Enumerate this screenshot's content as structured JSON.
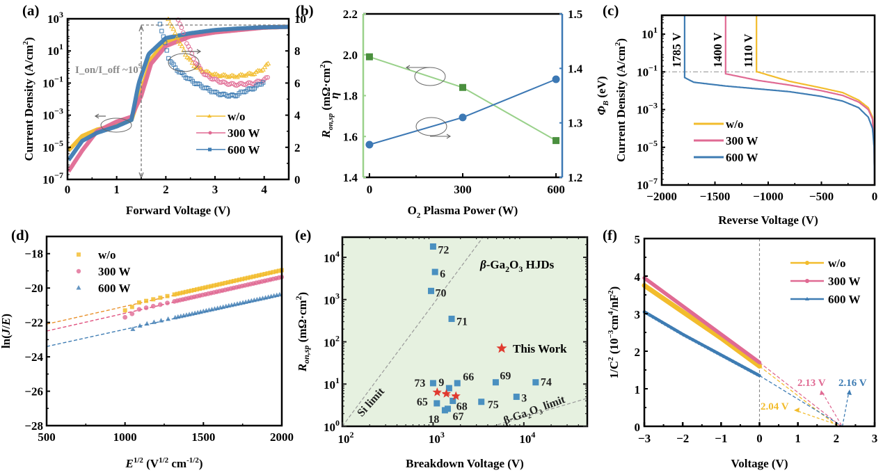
{
  "colors": {
    "wo": "#F2BC2C",
    "w300": "#E06A93",
    "w600": "#3E7CB3",
    "green_light": "#99D18A",
    "green_dark": "#4A8F3E",
    "blue": "#3C78B4",
    "bg_e": "#E6F1E0",
    "red": "#E03A2F",
    "gray": "#8C8C8C"
  },
  "chart_data": [
    {
      "panel": "(a)",
      "type": "line",
      "xlabel": "Forward Voltage (V)",
      "ylabel": "Current Density (A/cm²)",
      "y2label": "R_on,sp (mΩ·cm²)",
      "xlim": [
        0,
        4.5
      ],
      "ylim_log": [
        1e-07,
        1000.0
      ],
      "y2lim": [
        0,
        10
      ],
      "xticks": [
        "0",
        "1",
        "2",
        "3",
        "4"
      ],
      "yticks": [
        "10⁻⁷",
        "10⁻⁵",
        "10⁻³",
        "10⁻¹",
        "10¹",
        "10³"
      ],
      "y2ticks": [
        "0",
        "2",
        "4",
        "6",
        "8",
        "10"
      ],
      "annotation": "I_on/I_off ~10⁹",
      "legend": [
        {
          "label": "w/o",
          "ron": "6.4 mΩ·cm²"
        },
        {
          "label": "300 W",
          "ron": "5.9 mΩ·cm²"
        },
        {
          "label": "600 W",
          "ron": "5.2 mΩ·cm²"
        }
      ],
      "series": [
        {
          "name": "w/o",
          "x": [
            0.02,
            0.3,
            0.6,
            1.0,
            1.3,
            1.5,
            1.7,
            2.0,
            2.5,
            3.0,
            3.5,
            4.0,
            4.5
          ],
          "logJ": [
            -5.2,
            -4.3,
            -3.9,
            -3.6,
            -3.3,
            -1.5,
            0.5,
            1.6,
            2.0,
            2.2,
            2.35,
            2.45,
            2.5
          ]
        },
        {
          "name": "300 W",
          "x": [
            0.02,
            0.3,
            0.6,
            1.0,
            1.3,
            1.5,
            1.7,
            2.0,
            2.5,
            3.0,
            3.5,
            4.0,
            4.5
          ],
          "logJ": [
            -6.5,
            -5.2,
            -4.0,
            -3.4,
            -3.1,
            -1.8,
            0.2,
            1.3,
            1.9,
            2.15,
            2.3,
            2.45,
            2.5
          ]
        },
        {
          "name": "600 W",
          "x": [
            0.02,
            0.3,
            0.6,
            1.0,
            1.3,
            1.45,
            1.65,
            2.0,
            2.5,
            3.0,
            3.5,
            4.0,
            4.5
          ],
          "logJ": [
            -5.8,
            -4.6,
            -4.1,
            -3.7,
            -3.3,
            -1.0,
            0.8,
            1.8,
            2.1,
            2.3,
            2.4,
            2.47,
            2.5
          ]
        }
      ],
      "ron_series": [
        {
          "name": "w/o",
          "x": [
            2.05,
            2.2,
            2.4,
            2.6,
            2.8,
            3.0,
            3.2,
            3.4,
            3.6,
            3.8,
            4.0,
            4.1
          ],
          "ron": [
            10,
            9.0,
            7.8,
            7.0,
            6.7,
            6.5,
            6.45,
            6.4,
            6.5,
            6.6,
            6.9,
            7.3
          ]
        },
        {
          "name": "300 W",
          "x": [
            2.25,
            2.4,
            2.6,
            2.8,
            3.0,
            3.2,
            3.4,
            3.6,
            3.8,
            4.0,
            4.1
          ],
          "ron": [
            10,
            8.7,
            7.3,
            6.5,
            6.2,
            6.0,
            5.9,
            5.95,
            6.0,
            6.2,
            6.4
          ]
        },
        {
          "name": "600 W",
          "x": [
            1.88,
            1.95,
            2.05,
            2.2,
            2.4,
            2.6,
            2.8,
            3.0,
            3.2,
            3.4,
            3.6,
            3.8,
            4.0
          ],
          "ron": [
            9.7,
            8.9,
            7.6,
            6.9,
            6.4,
            6.0,
            5.7,
            5.4,
            5.25,
            5.2,
            5.5,
            5.7,
            6.1
          ]
        }
      ]
    },
    {
      "panel": "(b)",
      "type": "line",
      "xlabel": "O₂ Plasma Power (W)",
      "ylabel": "η",
      "y2label": "Φ_B (eV)",
      "xlim": [
        -20,
        620
      ],
      "ylim": [
        1.4,
        2.2
      ],
      "y2lim": [
        1.2,
        1.5
      ],
      "xticks": [
        "0",
        "300",
        "600"
      ],
      "yticks": [
        "1.4",
        "1.6",
        "1.8",
        "2.0",
        "2.2"
      ],
      "y2ticks": [
        "1.2",
        "1.3",
        "1.4",
        "1.5"
      ],
      "categories": [
        0,
        300,
        600
      ],
      "series": [
        {
          "name": "η",
          "axis": "left",
          "values": [
            1.99,
            1.84,
            1.58
          ]
        },
        {
          "name": "Φ_B",
          "axis": "right",
          "values": [
            1.26,
            1.31,
            1.38
          ]
        }
      ]
    },
    {
      "panel": "(c)",
      "type": "line",
      "xlabel": "Reverse Voltage (V)",
      "ylabel": "Current Density (A/cm²)",
      "xlim": [
        -2000,
        0
      ],
      "ylim_log": [
        1e-07,
        100.0
      ],
      "xticks": [
        "−2000",
        "−1500",
        "−1000",
        "−500",
        "0"
      ],
      "yticks": [
        "10⁻⁷",
        "10⁻⁵",
        "10⁻³",
        "10⁻¹",
        "10¹"
      ],
      "reference_line": 0.1,
      "breakdown_labels": [
        "1785 V",
        "1400 V",
        "1110 V"
      ],
      "legend": [
        "w/o",
        "300 W",
        "600 W"
      ],
      "series": [
        {
          "name": "w/o",
          "breakdown": -1110,
          "x": [
            0,
            -5,
            -20,
            -60,
            -150,
            -300,
            -500,
            -800,
            -1100
          ],
          "logJ": [
            -7,
            -5,
            -3.4,
            -2.9,
            -2.5,
            -2.1,
            -1.85,
            -1.5,
            -1.0
          ]
        },
        {
          "name": "300 W",
          "breakdown": -1400,
          "x": [
            0,
            -5,
            -20,
            -60,
            -150,
            -300,
            -500,
            -800,
            -1100,
            -1400
          ],
          "logJ": [
            -7,
            -5,
            -3.5,
            -3.0,
            -2.6,
            -2.25,
            -2.0,
            -1.7,
            -1.45,
            -1.1
          ]
        },
        {
          "name": "600 W",
          "breakdown": -1785,
          "x": [
            0,
            -5,
            -20,
            -60,
            -150,
            -300,
            -500,
            -800,
            -1100,
            -1400,
            -1700,
            -1785
          ],
          "logJ": [
            -7,
            -5,
            -4.0,
            -3.4,
            -2.9,
            -2.55,
            -2.3,
            -2.05,
            -1.9,
            -1.75,
            -1.55,
            -1.3
          ]
        }
      ]
    },
    {
      "panel": "(d)",
      "type": "scatter",
      "xlabel": "E^1/2 (V^1/2 cm^-1/2)",
      "ylabel": "ln(J/E)",
      "xlim": [
        500,
        2000
      ],
      "ylim": [
        -28,
        -17
      ],
      "xticks": [
        "500",
        "1000",
        "1500",
        "2000"
      ],
      "yticks": [
        "−28",
        "−26",
        "−24",
        "−22",
        "−20",
        "−18"
      ],
      "legend": [
        "w/o",
        "300 W",
        "600 W"
      ],
      "series": [
        {
          "name": "w/o",
          "x_start": 1000,
          "fit": [
            [
              500,
              -22.1
            ],
            [
              2000,
              -19.0
            ]
          ],
          "data_start": -21.3
        },
        {
          "name": "300 W",
          "x_start": 1000,
          "fit": [
            [
              500,
              -22.5
            ],
            [
              2000,
              -19.4
            ]
          ],
          "data_start": -21.7
        },
        {
          "name": "600 W",
          "x_start": 1050,
          "fit": [
            [
              500,
              -23.4
            ],
            [
              2000,
              -20.4
            ]
          ],
          "data_start": -22.4
        }
      ]
    },
    {
      "panel": "(e)",
      "type": "scatter",
      "xlabel": "Breakdown Voltage (V)",
      "ylabel": "R_on,sp (mΩ·cm²)",
      "xlim_log": [
        100,
        50000
      ],
      "ylim_log": [
        1,
        30000
      ],
      "xticks": [
        "10²",
        "10³",
        "10⁴"
      ],
      "yticks": [
        "10⁰",
        "10¹",
        "10²",
        "10³",
        "10⁴"
      ],
      "title": "β-Ga₂O₃ HJDs",
      "limit_labels": [
        "Si limit",
        "β-Ga₂O₃ limit"
      ],
      "legend": "This Work",
      "points": [
        {
          "label": "72",
          "x": 1000,
          "y": 18000
        },
        {
          "label": "6",
          "x": 1050,
          "y": 4500
        },
        {
          "label": "70",
          "x": 950,
          "y": 1600
        },
        {
          "label": "71",
          "x": 1600,
          "y": 350
        },
        {
          "label": "73",
          "x": 1000,
          "y": 10.5
        },
        {
          "label": "9",
          "x": 1500,
          "y": 8
        },
        {
          "label": "66",
          "x": 1850,
          "y": 10.5
        },
        {
          "label": "69",
          "x": 4900,
          "y": 11
        },
        {
          "label": "74",
          "x": 13500,
          "y": 11
        },
        {
          "label": "3",
          "x": 8300,
          "y": 5
        },
        {
          "label": "75",
          "x": 3400,
          "y": 3.8
        },
        {
          "label": "68",
          "x": 1650,
          "y": 4
        },
        {
          "label": "65",
          "x": 1100,
          "y": 3.5
        },
        {
          "label": "18",
          "x": 1350,
          "y": 2.4
        },
        {
          "label": "67",
          "x": 1450,
          "y": 2.6
        }
      ],
      "this_work": [
        {
          "x": 1110,
          "y": 6.4
        },
        {
          "x": 1400,
          "y": 5.9
        },
        {
          "x": 1785,
          "y": 5.2
        }
      ],
      "this_work_legend_point": {
        "x": 5700,
        "y": 70
      }
    },
    {
      "panel": "(f)",
      "type": "line",
      "xlabel": "Voltage (V)",
      "ylabel": "1/C² (10⁻³cm⁴/nF²)",
      "xlim": [
        -3,
        3
      ],
      "ylim": [
        0,
        5
      ],
      "xticks": [
        "−3",
        "−2",
        "−1",
        "0",
        "1",
        "2",
        "3"
      ],
      "yticks": [
        "0",
        "1",
        "2",
        "3",
        "4",
        "5"
      ],
      "legend": [
        "w/o",
        "300 W",
        "600 W"
      ],
      "intercept_labels": [
        "2.04 V",
        "2.13 V",
        "2.16 V"
      ],
      "series": [
        {
          "name": "w/o",
          "x": [
            -3,
            -2,
            -1,
            0
          ],
          "y": [
            3.75,
            3.05,
            2.35,
            1.6
          ],
          "intercept": 2.04
        },
        {
          "name": "300 W",
          "x": [
            -3,
            -2,
            -1,
            0
          ],
          "y": [
            3.95,
            3.2,
            2.45,
            1.7
          ],
          "intercept": 2.13
        },
        {
          "name": "600 W",
          "x": [
            -3,
            -2,
            -1,
            0
          ],
          "y": [
            3.05,
            2.45,
            1.9,
            1.35
          ],
          "intercept": 2.16
        }
      ]
    }
  ],
  "panel_labels": [
    "(a)",
    "(b)",
    "(c)",
    "(d)",
    "(e)",
    "(f)"
  ]
}
